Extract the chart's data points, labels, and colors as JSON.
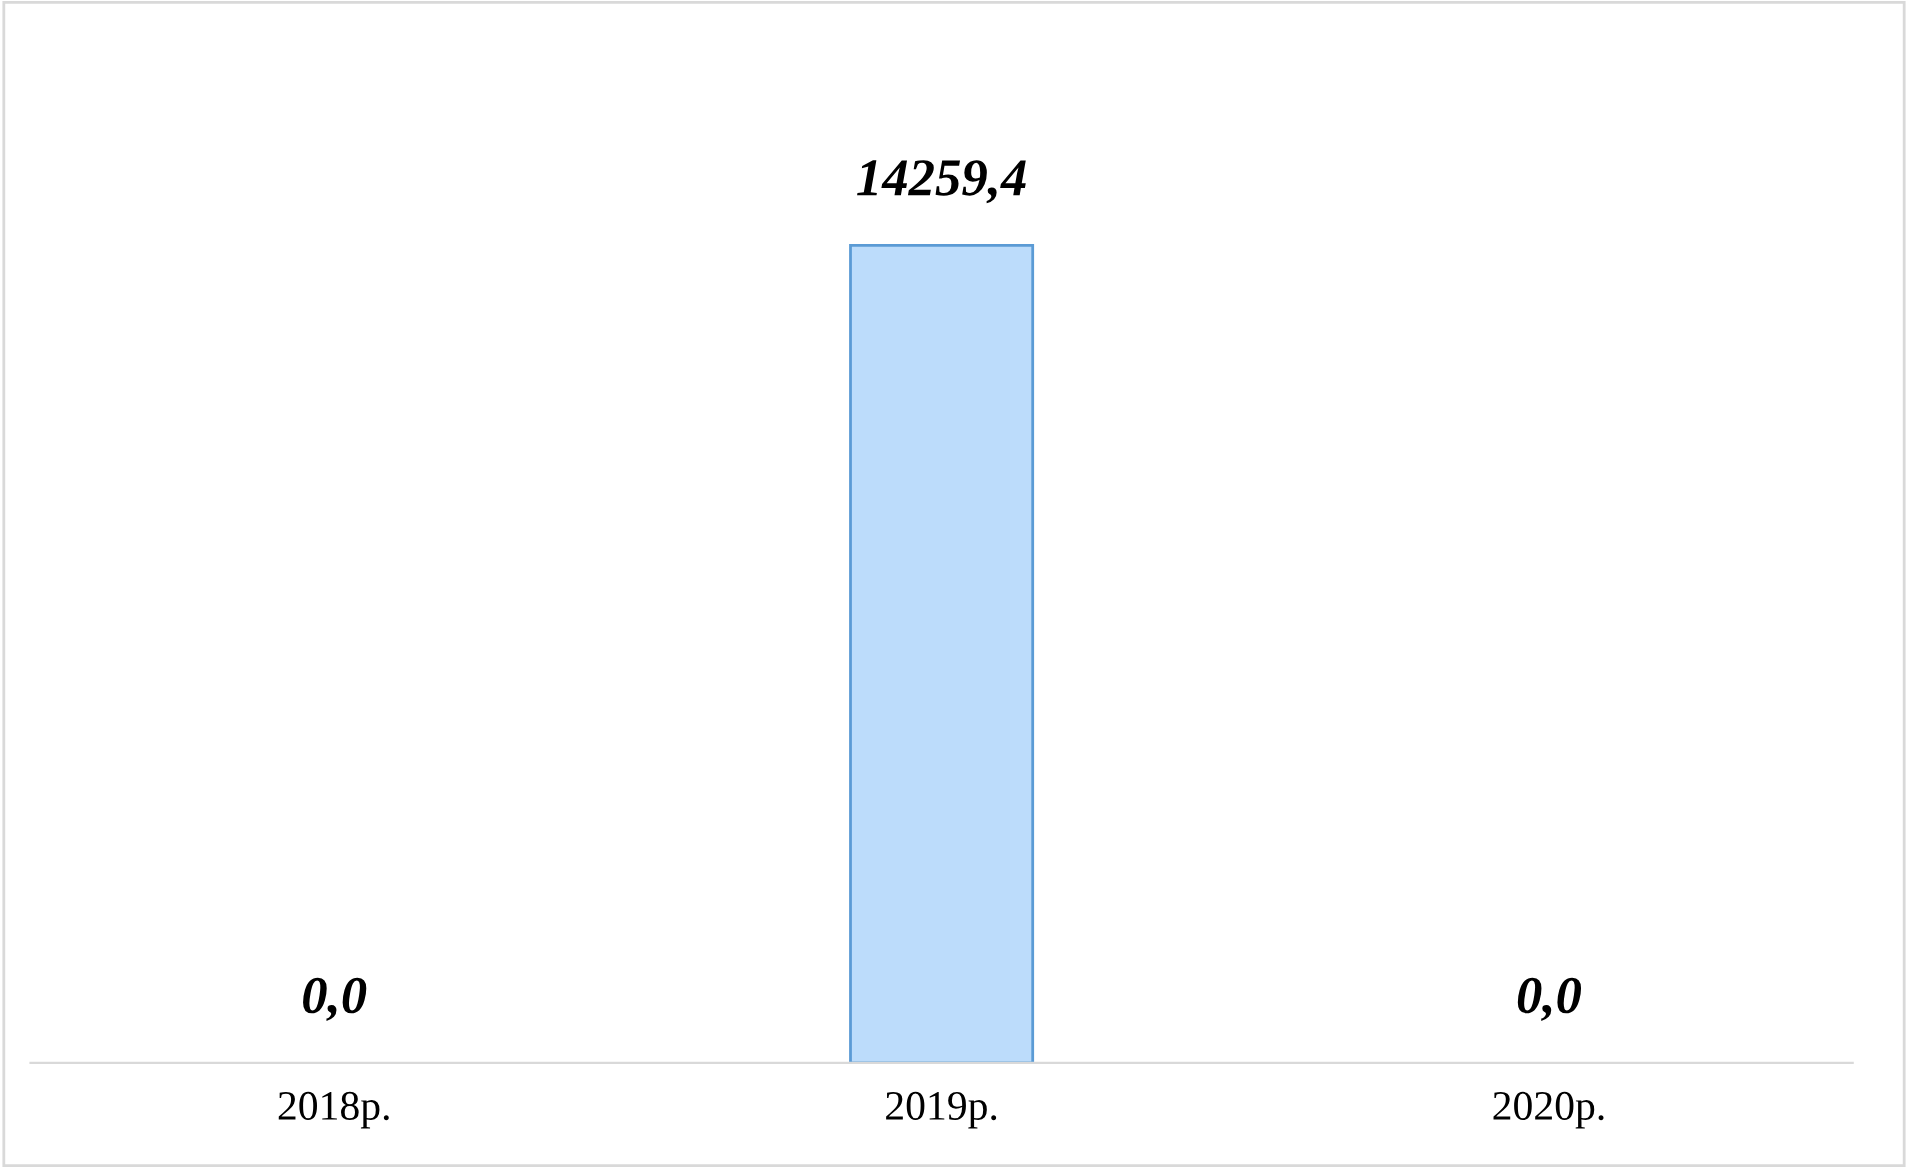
{
  "chart_data": {
    "type": "bar",
    "categories": [
      "2018р.",
      "2019р.",
      "2020р."
    ],
    "values": [
      0,
      14259.4,
      0
    ],
    "value_labels": [
      "0,0",
      "14259,4",
      "0,0"
    ],
    "color": "#bcdcfb",
    "grid": false,
    "legend": false
  }
}
